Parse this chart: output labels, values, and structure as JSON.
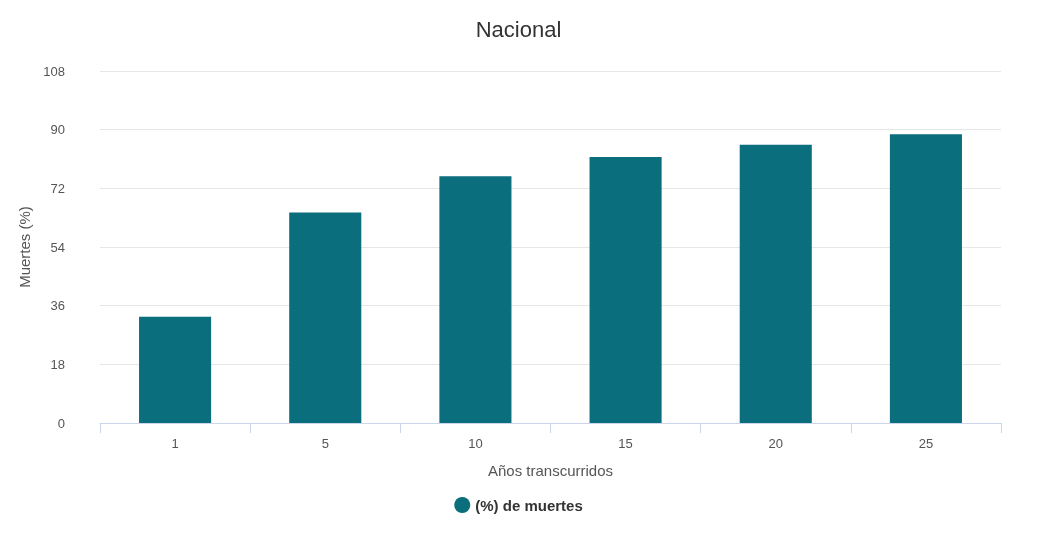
{
  "chart_data": {
    "type": "bar",
    "title": "Nacional",
    "xlabel": "Años transcurridos",
    "ylabel": "Muertes (%)",
    "categories": [
      "1",
      "5",
      "10",
      "15",
      "20",
      "25"
    ],
    "series": [
      {
        "name": "(%) de muertes",
        "color": "#0a6e7d",
        "values": [
          32.6,
          64.6,
          75.7,
          81.6,
          85.4,
          88.6
        ]
      }
    ],
    "ylim": [
      0,
      108
    ],
    "yticks": [
      0,
      18,
      36,
      54,
      72,
      90,
      108
    ],
    "grid": "y",
    "legend": "bottom"
  }
}
